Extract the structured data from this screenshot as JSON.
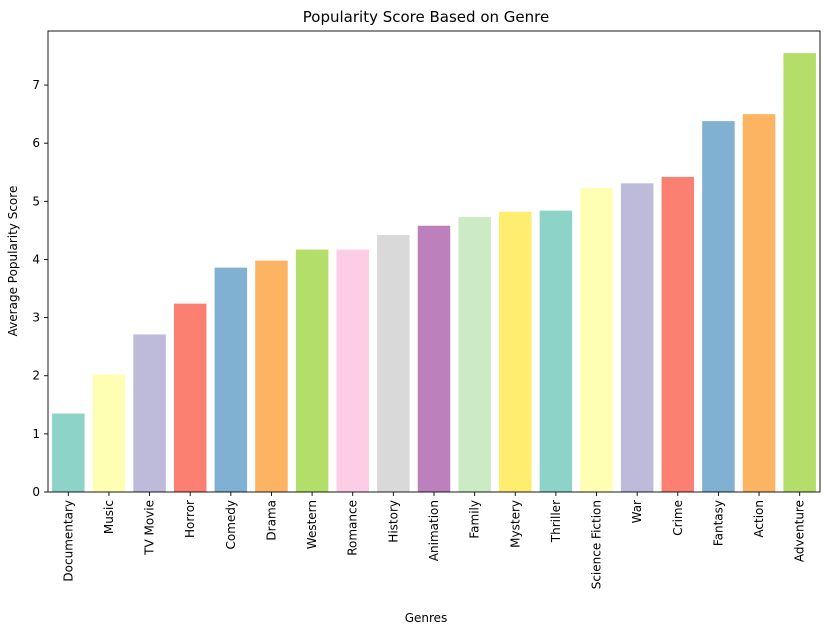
{
  "chart_data": {
    "type": "bar",
    "title": "Popularity Score Based on Genre",
    "xlabel": "Genres",
    "ylabel": "Average Popularity Score",
    "categories": [
      "Documentary",
      "Music",
      "TV Movie",
      "Horror",
      "Comedy",
      "Drama",
      "Western",
      "Romance",
      "History",
      "Animation",
      "Family",
      "Mystery",
      "Thriller",
      "Science Fiction",
      "War",
      "Crime",
      "Fantasy",
      "Action",
      "Adventure"
    ],
    "values": [
      1.35,
      2.02,
      2.71,
      3.24,
      3.86,
      3.98,
      4.17,
      4.17,
      4.42,
      4.58,
      4.73,
      4.82,
      4.84,
      5.23,
      5.31,
      5.42,
      6.38,
      6.5,
      7.55
    ],
    "colors": [
      "#8dd3c7",
      "#ffffb3",
      "#bebada",
      "#fb8072",
      "#80b1d3",
      "#fdb462",
      "#b3de69",
      "#fccde5",
      "#d9d9d9",
      "#bc80bd",
      "#ccebc5",
      "#ffed6f",
      "#8dd3c7",
      "#ffffb3",
      "#bebada",
      "#fb8072",
      "#80b1d3",
      "#fdb462",
      "#b3de69"
    ],
    "yticks": [
      "0",
      "1",
      "2",
      "3",
      "4",
      "5",
      "6",
      "7"
    ],
    "ylim": [
      0,
      7.93
    ],
    "grid": false
  }
}
